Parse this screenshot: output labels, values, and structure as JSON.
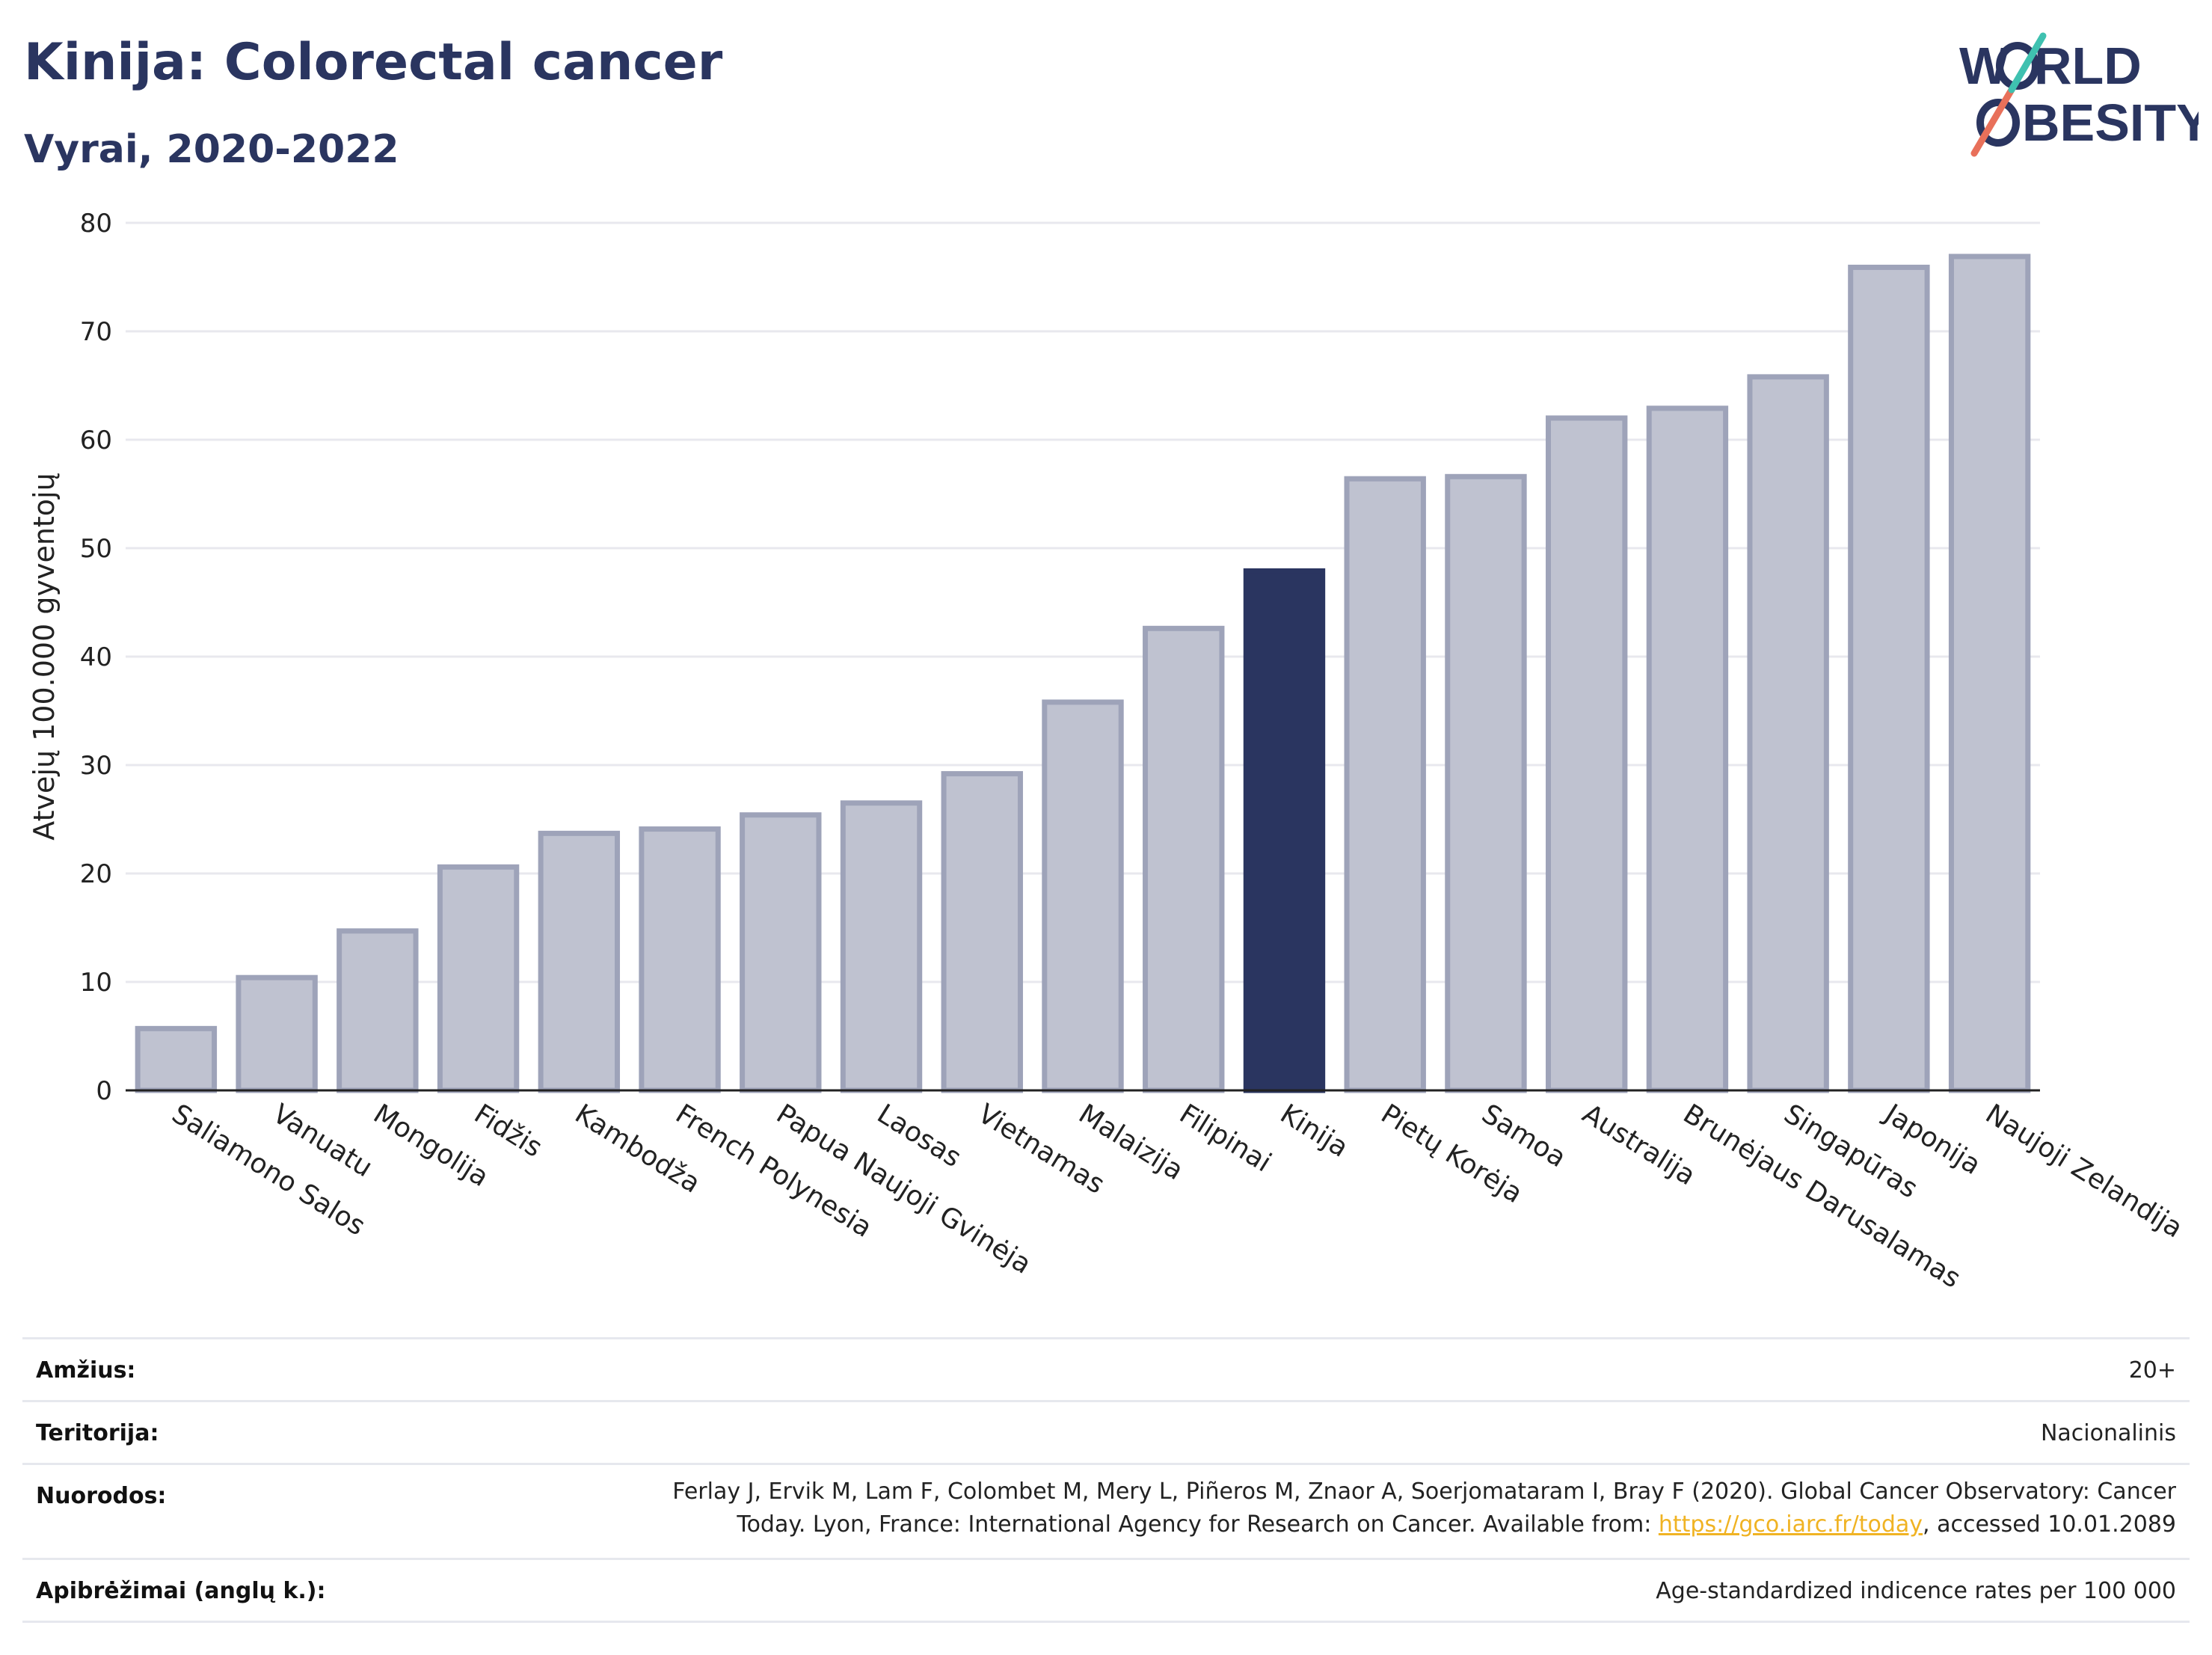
{
  "header": {
    "title": "Kinija: Colorectal cancer",
    "subtitle": "Vyrai, 2020-2022"
  },
  "logo": {
    "line1_left": "W",
    "line1_right": "RLD",
    "line2_right": "BESITY",
    "brand_colors": [
      "#2a3560",
      "#e8705a",
      "#3fc1b0"
    ]
  },
  "chart_data": {
    "type": "bar",
    "ylabel": "Atvejų 100.000 gyventojų",
    "xlabel": "",
    "ylim": [
      0,
      80
    ],
    "yticks": [
      0,
      10,
      20,
      30,
      40,
      50,
      60,
      70,
      80
    ],
    "grid": true,
    "highlight": "Kinija",
    "colors": {
      "bar": "#bfc2d0",
      "bar_border": "#9ea3b9",
      "highlight": "#2a3560",
      "grid": "#e8e8ee"
    },
    "categories": [
      "Saliamono Salos",
      "Vanuatu",
      "Mongolija",
      "Fidžis",
      "Kambodža",
      "French Polynesia",
      "Papua Naujoji Gvinėja",
      "Laosas",
      "Vietnamas",
      "Malaizija",
      "Filipinai",
      "Kinija",
      "Pietų Korėja",
      "Samoa",
      "Australija",
      "Brunėjaus Darusalamas",
      "Singapūras",
      "Japonija",
      "Naujoji Zelandija"
    ],
    "values": [
      5.7,
      10.4,
      14.7,
      20.6,
      23.7,
      24.1,
      25.4,
      26.5,
      29.2,
      35.8,
      42.6,
      47.9,
      56.4,
      56.6,
      62.0,
      62.9,
      65.8,
      75.9,
      76.9
    ]
  },
  "meta": [
    {
      "key": "Amžius:",
      "value": "20+"
    },
    {
      "key": "Teritorija:",
      "value": "Nacionalinis"
    },
    {
      "key": "Nuorodos:",
      "value_line1": "Ferlay J, Ervik M, Lam F, Colombet M, Mery L, Piñeros M, Znaor A, Soerjomataram I, Bray F (2020). Global Cancer Observatory: Cancer",
      "value_line2_pre": "Today. Lyon, France: International Agency for Research on Cancer. Available from: ",
      "link": "https://gco.iarc.fr/today",
      "value_line2_post": ", accessed 10.01.2089"
    },
    {
      "key": "Apibrėžimai (anglų k.):",
      "value": "Age-standardized indicence rates per 100 000"
    }
  ]
}
